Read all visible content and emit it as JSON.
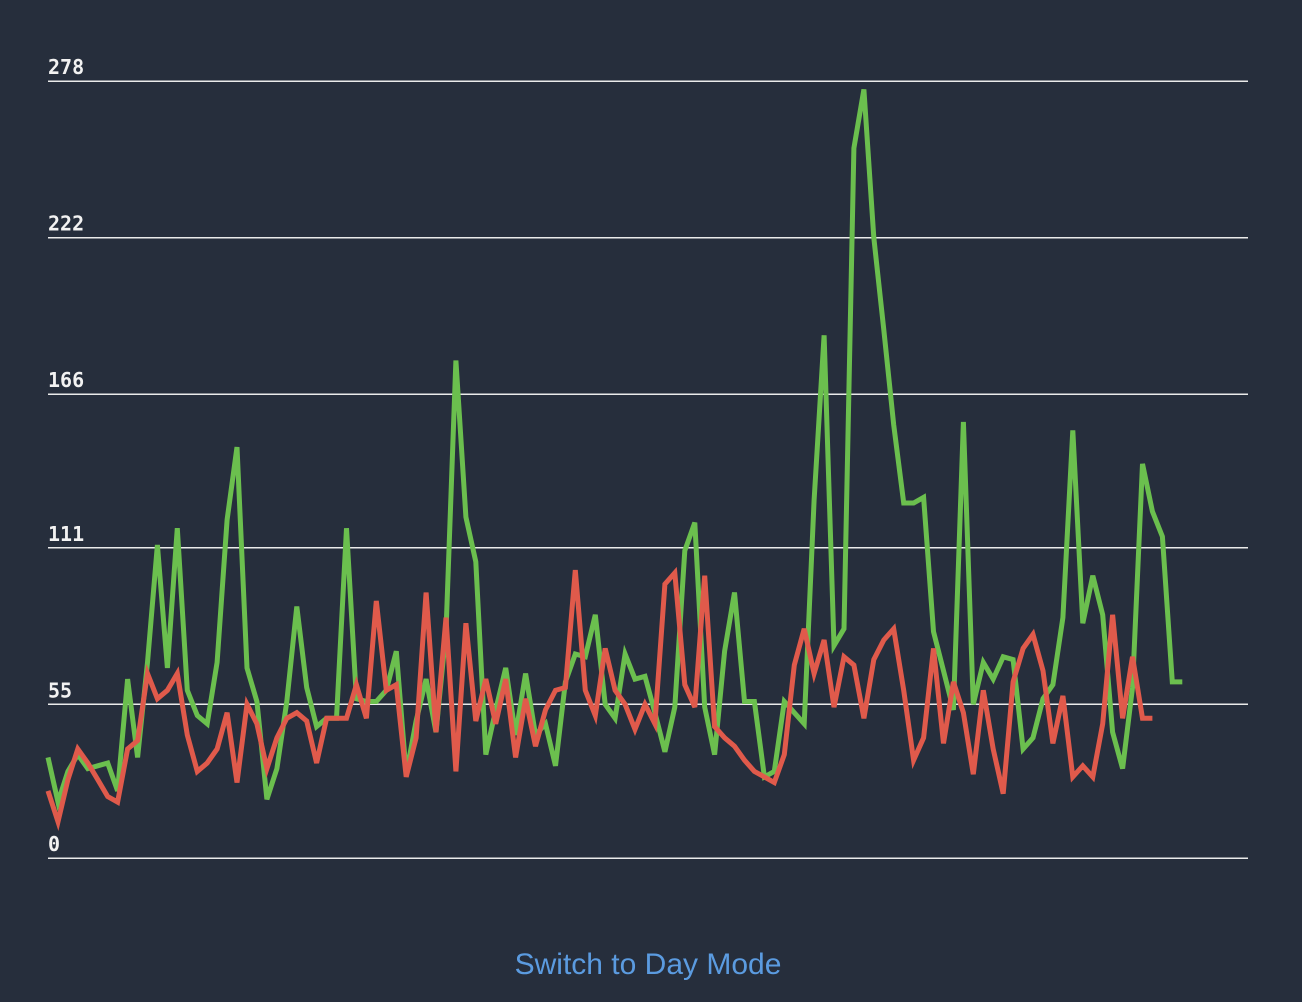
{
  "mode_toggle": {
    "label": "Switch to Day Mode"
  },
  "colors": {
    "background": "#262e3c",
    "grid": "#eaeaea",
    "tick_text": "#f2f2f2",
    "link": "#5b9be0"
  },
  "chart_data": {
    "type": "line",
    "title": "",
    "xlabel": "",
    "ylabel": "",
    "ylim": [
      0,
      278
    ],
    "yticks": [
      0,
      55,
      111,
      166,
      222,
      278
    ],
    "grid": true,
    "legend": "none",
    "series": [
      {
        "color": "#6bbf4e",
        "values": [
          36,
          20,
          31,
          37,
          32,
          33,
          34,
          24,
          64,
          36,
          70,
          112,
          68,
          118,
          60,
          51,
          48,
          70,
          121,
          147,
          68,
          56,
          21,
          32,
          56,
          90,
          61,
          47,
          50,
          50,
          118,
          57,
          56,
          56,
          60,
          74,
          30,
          49,
          64,
          45,
          81,
          178,
          122,
          106,
          37,
          53,
          68,
          44,
          66,
          44,
          48,
          33,
          63,
          73,
          72,
          87,
          55,
          50,
          73,
          64,
          65,
          52,
          38,
          54,
          110,
          120,
          54,
          37,
          74,
          95,
          56,
          56,
          29,
          31,
          56,
          52,
          48,
          128,
          187,
          76,
          82,
          254,
          275,
          222,
          189,
          155,
          127,
          127,
          129,
          81,
          67,
          53,
          156,
          55,
          70,
          64,
          72,
          71,
          39,
          43,
          57,
          62,
          86,
          153,
          84,
          101,
          87,
          45,
          32,
          61,
          141,
          124,
          115,
          63,
          63
        ]
      },
      {
        "color": "#e05a4b",
        "values": [
          24,
          13,
          28,
          39,
          34,
          28,
          22,
          20,
          39,
          42,
          66,
          57,
          60,
          66,
          44,
          31,
          34,
          39,
          52,
          27,
          55,
          48,
          32,
          43,
          50,
          52,
          49,
          34,
          50,
          50,
          50,
          62,
          50,
          92,
          60,
          62,
          29,
          43,
          95,
          45,
          86,
          31,
          84,
          49,
          64,
          48,
          64,
          36,
          57,
          40,
          53,
          60,
          61,
          103,
          60,
          51,
          75,
          60,
          55,
          46,
          55,
          48,
          98,
          102,
          62,
          54,
          101,
          47,
          43,
          40,
          35,
          31,
          29,
          27,
          37,
          69,
          82,
          66,
          78,
          54,
          72,
          69,
          50,
          71,
          78,
          82,
          60,
          35,
          43,
          75,
          41,
          63,
          52,
          30,
          60,
          39,
          23,
          63,
          75,
          80,
          67,
          41,
          58,
          29,
          33,
          29,
          48,
          87,
          50,
          72,
          50,
          50
        ]
      }
    ]
  }
}
